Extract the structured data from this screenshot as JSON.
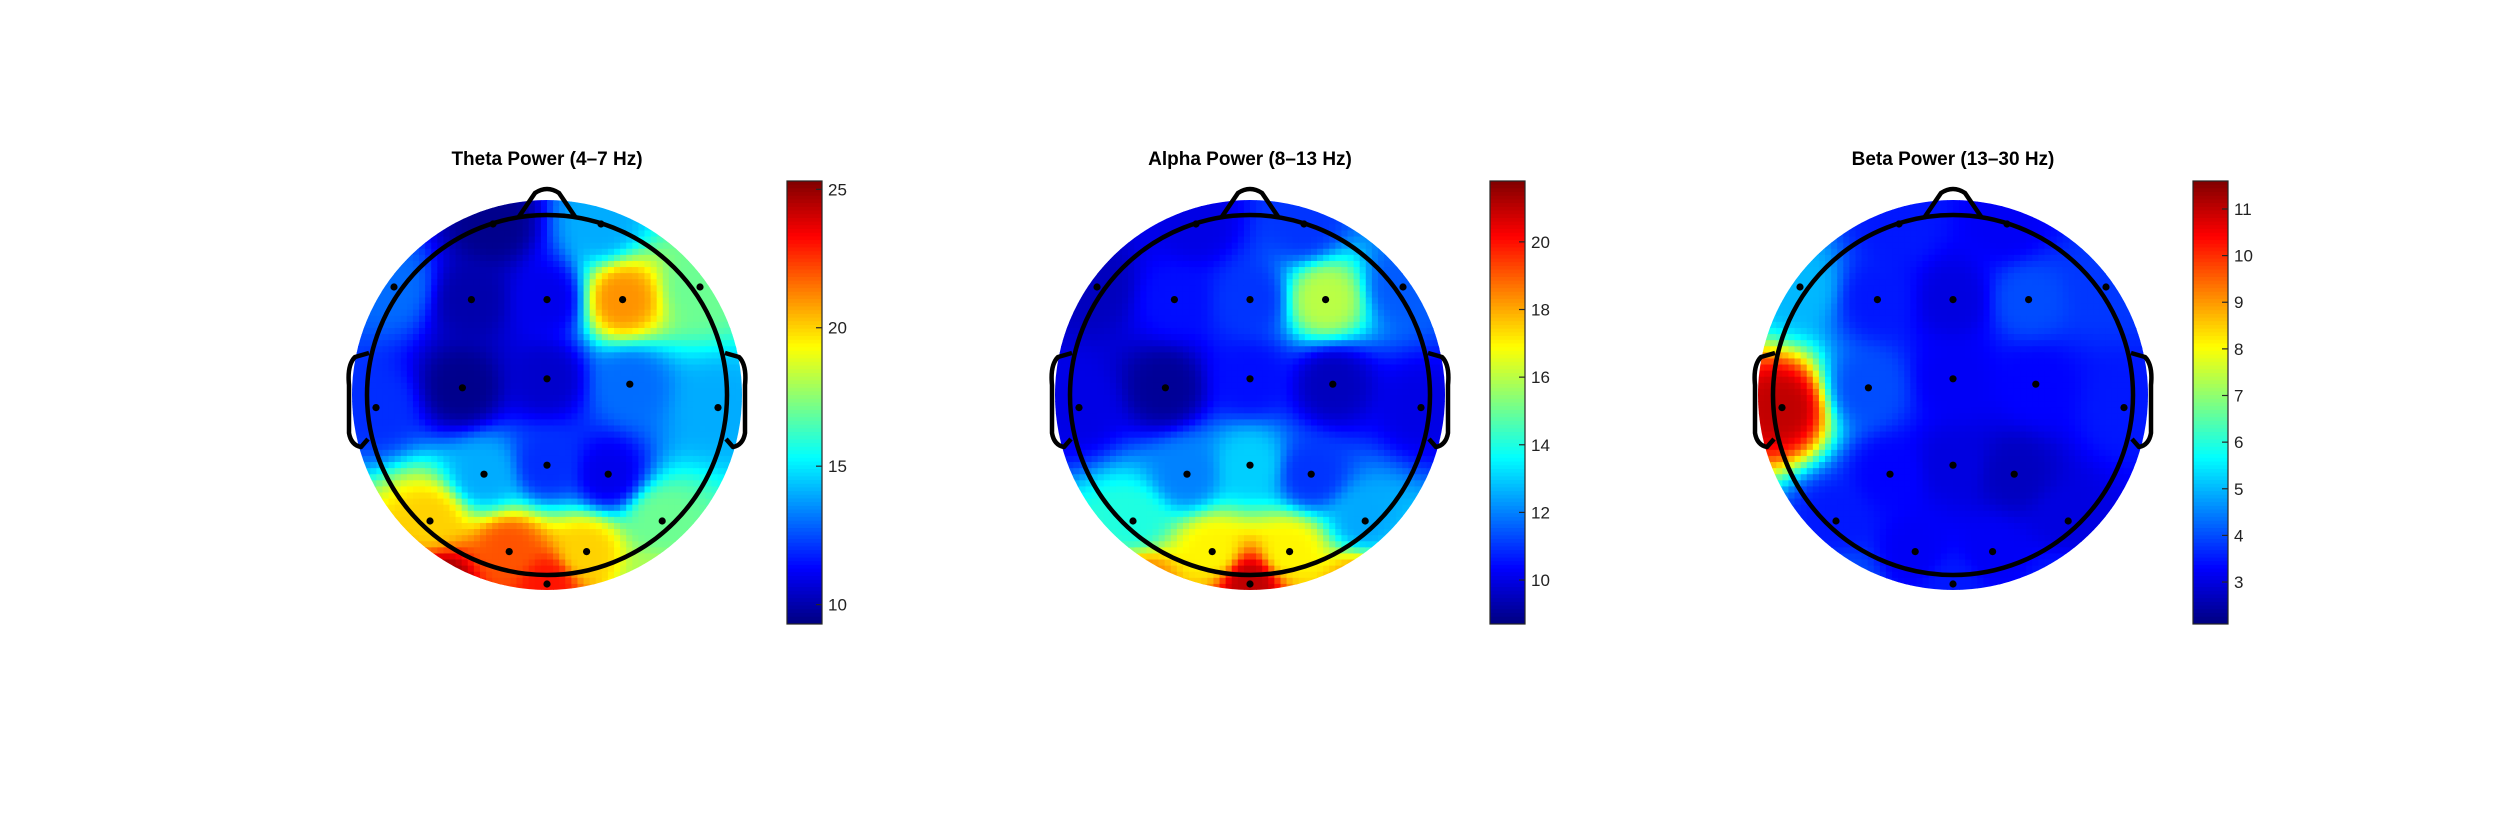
{
  "chart_data": [
    {
      "type": "heatmap",
      "title": "Theta Power (4–7 Hz)",
      "colormap": "jet",
      "clim": [
        9.3,
        25.3
      ],
      "colorbar_ticks": [
        "10",
        "15",
        "20",
        "25"
      ],
      "colorbar_tick_values": [
        10,
        15,
        20,
        25
      ],
      "electrodes": [
        {
          "x": -0.42,
          "y": 0.53,
          "v": 10
        },
        {
          "x": 0.0,
          "y": 0.53,
          "v": 11
        },
        {
          "x": 0.42,
          "y": 0.53,
          "v": 21
        },
        {
          "x": -0.85,
          "y": 0.6,
          "v": 13
        },
        {
          "x": 0.85,
          "y": 0.6,
          "v": 17
        },
        {
          "x": -0.47,
          "y": 0.04,
          "v": 9.5
        },
        {
          "x": 0.0,
          "y": 0.09,
          "v": 10.5
        },
        {
          "x": 0.46,
          "y": 0.06,
          "v": 13
        },
        {
          "x": -0.95,
          "y": -0.07,
          "v": 12
        },
        {
          "x": 0.95,
          "y": -0.07,
          "v": 14
        },
        {
          "x": -0.35,
          "y": -0.44,
          "v": 14
        },
        {
          "x": 0.0,
          "y": -0.39,
          "v": 12
        },
        {
          "x": 0.34,
          "y": -0.44,
          "v": 11
        },
        {
          "x": -0.65,
          "y": -0.7,
          "v": 20
        },
        {
          "x": 0.64,
          "y": -0.7,
          "v": 17
        },
        {
          "x": -0.21,
          "y": -0.87,
          "v": 22
        },
        {
          "x": 0.22,
          "y": -0.87,
          "v": 20
        },
        {
          "x": -0.6,
          "y": -1.05,
          "v": 25
        },
        {
          "x": 0.0,
          "y": -1.05,
          "v": 23
        },
        {
          "x": 0.6,
          "y": -1.05,
          "v": 18
        },
        {
          "x": 0.3,
          "y": 0.95,
          "v": 14
        },
        {
          "x": -0.3,
          "y": 0.95,
          "v": 9.5
        }
      ]
    },
    {
      "type": "heatmap",
      "title": "Alpha Power (8–13 Hz)",
      "colormap": "jet",
      "clim": [
        8.7,
        21.8
      ],
      "colorbar_ticks": [
        "10",
        "12",
        "14",
        "16",
        "18",
        "20"
      ],
      "colorbar_tick_values": [
        10,
        12,
        14,
        16,
        18,
        20
      ],
      "electrodes": [
        {
          "x": -0.42,
          "y": 0.53,
          "v": 10.5
        },
        {
          "x": 0.0,
          "y": 0.53,
          "v": 11
        },
        {
          "x": 0.42,
          "y": 0.53,
          "v": 16
        },
        {
          "x": -0.85,
          "y": 0.6,
          "v": 9.5
        },
        {
          "x": 0.85,
          "y": 0.6,
          "v": 11.5
        },
        {
          "x": -0.47,
          "y": 0.04,
          "v": 9
        },
        {
          "x": 0.0,
          "y": 0.09,
          "v": 10.5
        },
        {
          "x": 0.46,
          "y": 0.06,
          "v": 9.5
        },
        {
          "x": -0.95,
          "y": -0.07,
          "v": 10
        },
        {
          "x": 0.95,
          "y": -0.07,
          "v": 10
        },
        {
          "x": -0.35,
          "y": -0.44,
          "v": 12
        },
        {
          "x": 0.0,
          "y": -0.39,
          "v": 13
        },
        {
          "x": 0.34,
          "y": -0.44,
          "v": 11
        },
        {
          "x": -0.65,
          "y": -0.7,
          "v": 14
        },
        {
          "x": 0.64,
          "y": -0.7,
          "v": 12.5
        },
        {
          "x": -0.21,
          "y": -0.87,
          "v": 17
        },
        {
          "x": 0.22,
          "y": -0.87,
          "v": 17
        },
        {
          "x": -0.6,
          "y": -1.05,
          "v": 18.5
        },
        {
          "x": 0.0,
          "y": -1.05,
          "v": 21
        },
        {
          "x": 0.6,
          "y": -1.05,
          "v": 18
        },
        {
          "x": 0.3,
          "y": 0.95,
          "v": 11
        },
        {
          "x": -0.3,
          "y": 0.95,
          "v": 10
        }
      ]
    },
    {
      "type": "heatmap",
      "title": "Beta Power (13–30 Hz)",
      "colormap": "jet",
      "clim": [
        2.1,
        11.6
      ],
      "colorbar_ticks": [
        "3",
        "4",
        "5",
        "6",
        "7",
        "8",
        "9",
        "10",
        "11"
      ],
      "colorbar_tick_values": [
        3,
        4,
        5,
        6,
        7,
        8,
        9,
        10,
        11
      ],
      "electrodes": [
        {
          "x": -0.42,
          "y": 0.53,
          "v": 3.5
        },
        {
          "x": 0.0,
          "y": 0.53,
          "v": 3
        },
        {
          "x": 0.42,
          "y": 0.53,
          "v": 4
        },
        {
          "x": -0.85,
          "y": 0.6,
          "v": 5
        },
        {
          "x": 0.85,
          "y": 0.6,
          "v": 3.8
        },
        {
          "x": -0.47,
          "y": 0.04,
          "v": 4
        },
        {
          "x": 0.0,
          "y": 0.09,
          "v": 3.2
        },
        {
          "x": 0.46,
          "y": 0.06,
          "v": 3.3
        },
        {
          "x": -0.95,
          "y": -0.07,
          "v": 11
        },
        {
          "x": 0.95,
          "y": -0.07,
          "v": 3.5
        },
        {
          "x": -0.35,
          "y": -0.44,
          "v": 3.3
        },
        {
          "x": 0.0,
          "y": -0.39,
          "v": 3
        },
        {
          "x": 0.34,
          "y": -0.44,
          "v": 2.7
        },
        {
          "x": -0.65,
          "y": -0.7,
          "v": 3.5
        },
        {
          "x": 0.64,
          "y": -0.7,
          "v": 3
        },
        {
          "x": -0.21,
          "y": -0.87,
          "v": 3.2
        },
        {
          "x": 0.22,
          "y": -0.87,
          "v": 3.2
        },
        {
          "x": -0.6,
          "y": -1.05,
          "v": 4
        },
        {
          "x": 0.0,
          "y": -1.05,
          "v": 3.5
        },
        {
          "x": 0.6,
          "y": -1.05,
          "v": 3.5
        },
        {
          "x": 0.3,
          "y": 0.95,
          "v": 3.2
        },
        {
          "x": -0.3,
          "y": 0.95,
          "v": 3.5
        }
      ]
    }
  ]
}
